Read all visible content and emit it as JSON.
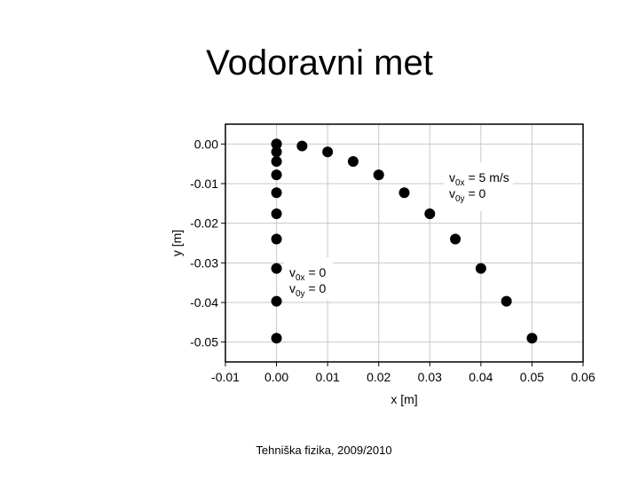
{
  "slide": {
    "title": "Vodoravni met",
    "footer": "Tehniška fizika, 2009/2010"
  },
  "chart_data": {
    "type": "scatter",
    "x_label": "x [m]",
    "y_label": "y [m]",
    "xlim": [
      -0.01,
      0.06
    ],
    "ylim": [
      -0.055,
      0.005
    ],
    "xticks": [
      {
        "value": -0.01,
        "label": "-0.01"
      },
      {
        "value": 0,
        "label": "0.00"
      },
      {
        "value": 0.01,
        "label": "0.01"
      },
      {
        "value": 0.02,
        "label": "0.02"
      },
      {
        "value": 0.03,
        "label": "0.03"
      },
      {
        "value": 0.04,
        "label": "0.04"
      },
      {
        "value": 0.05,
        "label": "0.05"
      },
      {
        "value": 0.06,
        "label": "0.06"
      }
    ],
    "yticks": [
      {
        "value": 0,
        "label": "0.00"
      },
      {
        "value": -0.01,
        "label": "-0.01"
      },
      {
        "value": -0.02,
        "label": "-0.02"
      },
      {
        "value": -0.03,
        "label": "-0.03"
      },
      {
        "value": -0.04,
        "label": "-0.04"
      },
      {
        "value": -0.05,
        "label": "-0.05"
      }
    ],
    "grid": true,
    "series": [
      {
        "color": "#000000",
        "x": [
          0,
          0.005,
          0.01,
          0.015,
          0.02,
          0.025,
          0.03,
          0.035,
          0.04,
          0.045,
          0.05
        ],
        "values": [
          0,
          -0.0005,
          -0.002,
          -0.0044,
          -0.0078,
          -0.0123,
          -0.0176,
          -0.024,
          -0.0314,
          -0.0397,
          -0.049
        ]
      },
      {
        "color": "#000000",
        "x": [
          0,
          0,
          0,
          0,
          0,
          0,
          0,
          0,
          0,
          0
        ],
        "values": [
          0,
          -0.002,
          -0.0044,
          -0.0078,
          -0.0123,
          -0.0176,
          -0.024,
          -0.0314,
          -0.0397,
          -0.049
        ]
      }
    ],
    "annotations": [
      {
        "lines": [
          {
            "symbol": "v",
            "sub": "0x",
            "rest": " = 5 m/s"
          },
          {
            "symbol": "v",
            "sub": "0y",
            "rest": " = 0"
          }
        ]
      },
      {
        "lines": [
          {
            "symbol": "v",
            "sub": "0x",
            "rest": " = 0"
          },
          {
            "symbol": "v",
            "sub": "0y",
            "rest": " = 0"
          }
        ]
      }
    ]
  }
}
